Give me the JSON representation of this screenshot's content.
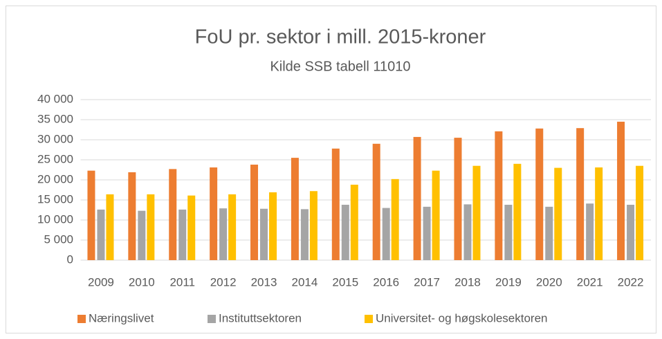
{
  "chart_data": {
    "type": "bar",
    "title": "FoU pr. sektor i mill. 2015-kroner",
    "subtitle": "Kilde SSB tabell 11010",
    "categories": [
      "2009",
      "2010",
      "2011",
      "2012",
      "2013",
      "2014",
      "2015",
      "2016",
      "2017",
      "2018",
      "2019",
      "2020",
      "2021",
      "2022"
    ],
    "series": [
      {
        "name": "Næringslivet",
        "color": "#ED7D31",
        "values": [
          22300,
          21900,
          22700,
          23100,
          23800,
          25500,
          27800,
          29000,
          30700,
          30500,
          32100,
          32800,
          32900,
          34500
        ]
      },
      {
        "name": "Instituttsektoren",
        "color": "#A5A5A5",
        "values": [
          12600,
          12300,
          12600,
          12900,
          12800,
          12700,
          13800,
          13000,
          13300,
          13900,
          13800,
          13300,
          14100,
          13800
        ]
      },
      {
        "name": "Universitet- og høgskolesektoren",
        "color": "#FFC000",
        "values": [
          16400,
          16400,
          16100,
          16400,
          16900,
          17200,
          18800,
          20200,
          22300,
          23500,
          24000,
          23000,
          23100,
          23500
        ]
      }
    ],
    "ylim": [
      0,
      40000
    ],
    "yticks": [
      0,
      {
        "value": 5000,
        "label": "5 000"
      },
      {
        "value": 10000,
        "label": "10 000"
      },
      {
        "value": 15000,
        "label": "15 000"
      },
      {
        "value": 20000,
        "label": "20 000"
      },
      {
        "value": 25000,
        "label": "25 000"
      },
      {
        "value": 30000,
        "label": "30 000"
      },
      {
        "value": 35000,
        "label": "35 000"
      },
      {
        "value": 40000,
        "label": "40 000"
      }
    ],
    "grid": true,
    "legend": "bottom"
  }
}
